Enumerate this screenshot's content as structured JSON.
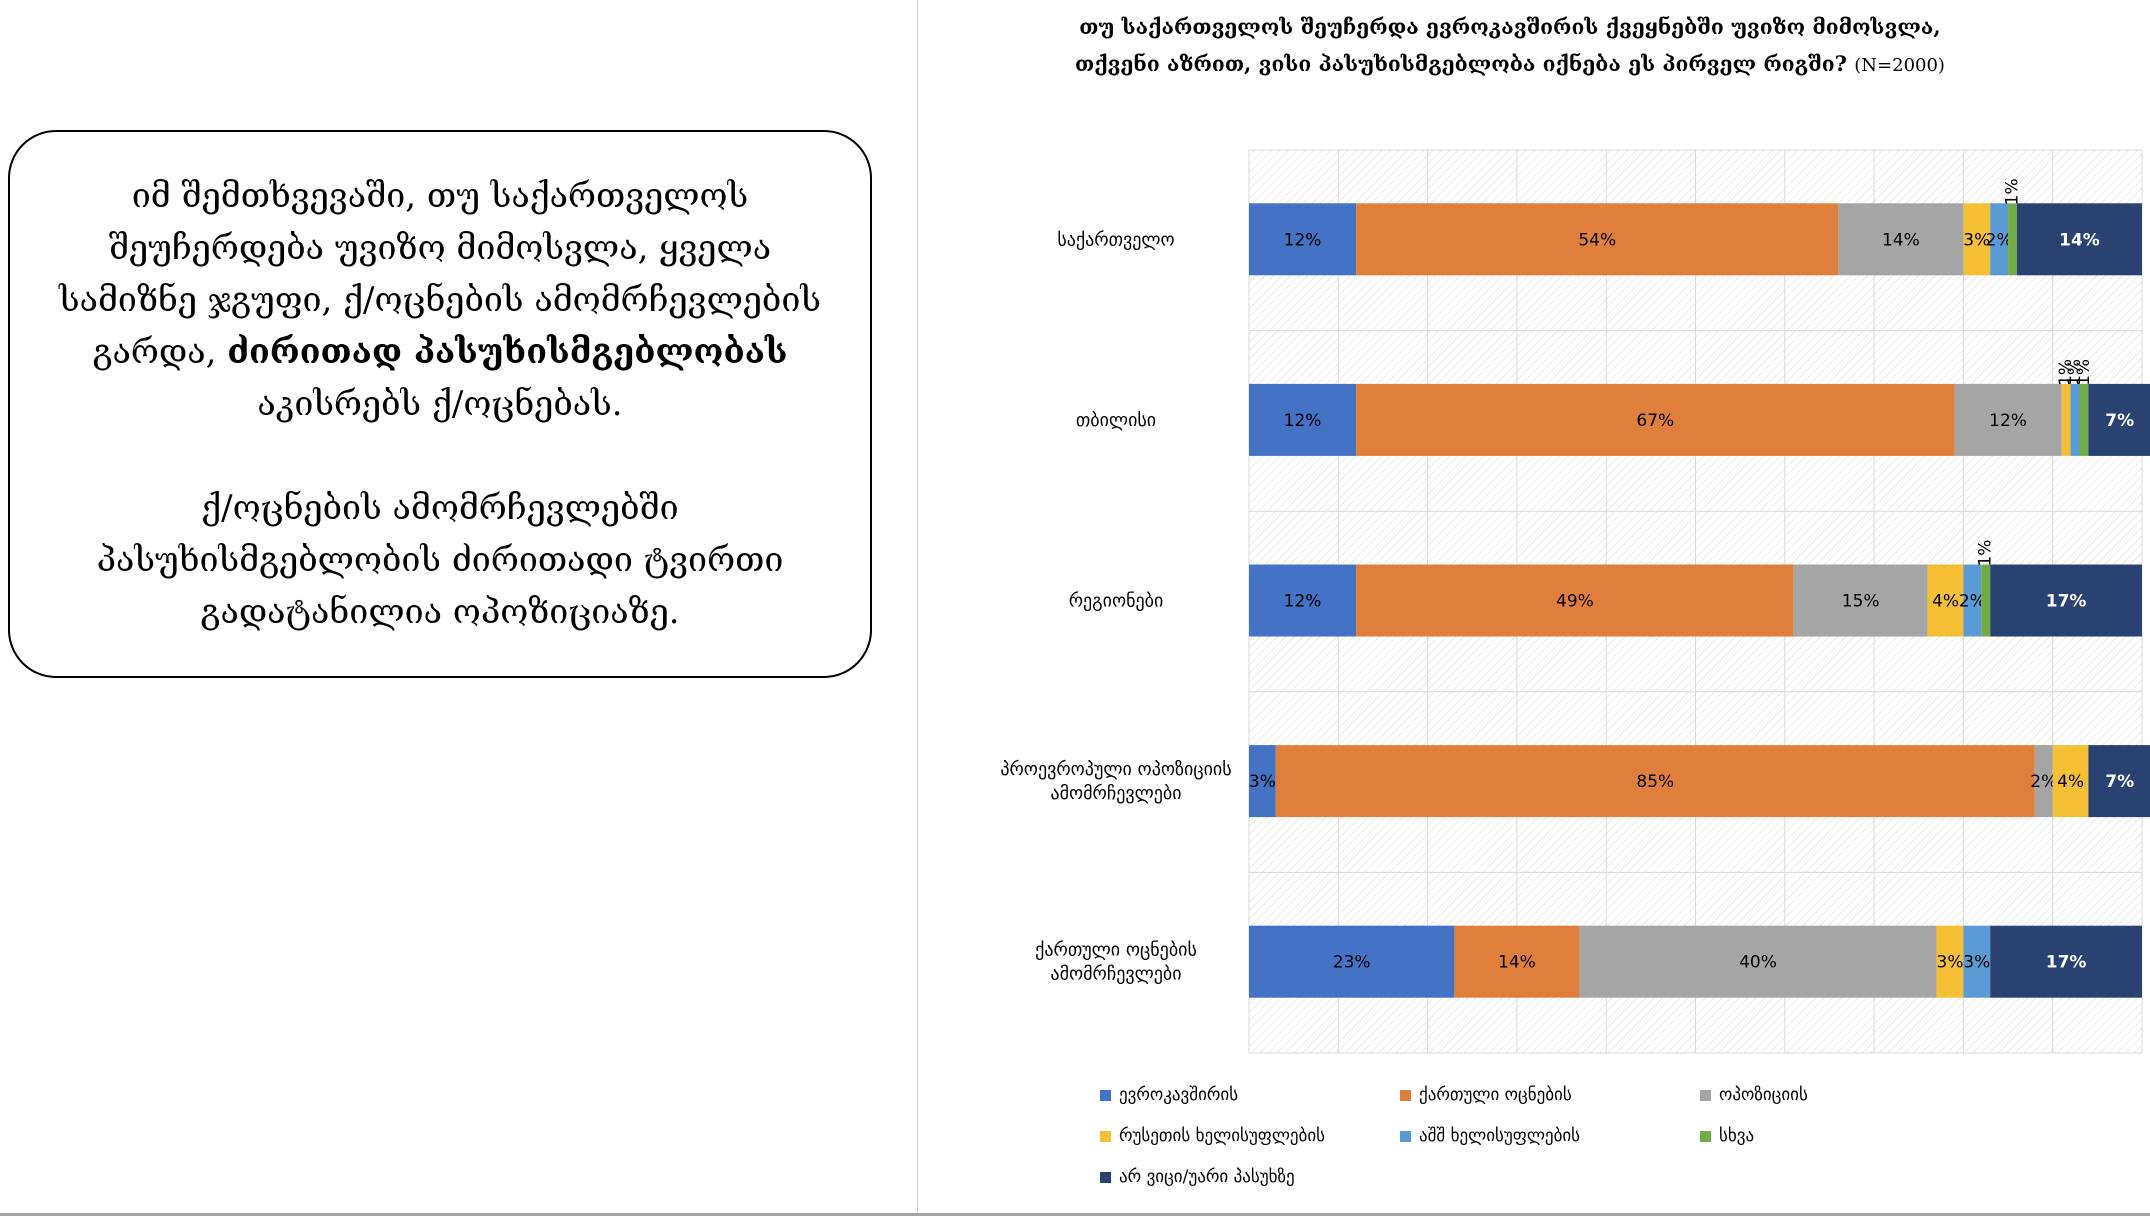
{
  "callout": {
    "p1_part1": "იმ შემთხვევაში, თუ საქართველოს შეუჩერდება უვიზო მიმოსვლა, ყველა სამიზნე ჯგუფი, ქ/ოცნების ამომრჩევლების გარდა,",
    "p1_bold": "ძირითად პასუხისმგებლობას",
    "p1_part2": "აკისრებს ქ/ოცნებას.",
    "p2": "ქ/ოცნების ამომრჩევლებში პასუხისმგებლობის ძირითადი ტვირთი გადატანილია ოპოზიციაზე."
  },
  "chart_data": {
    "type": "bar",
    "orientation": "horizontal",
    "stacked": "percent",
    "title": "თუ საქართველოს შეუჩერდა ევროკავშირის ქვეყნებში უვიზო მიმოსვლა, თქვენი აზრით, ვისი პასუხისმგებლობა იქნება ეს  პირველ რიგში?",
    "title_note": "(N=2000)",
    "categories": [
      "საქართველო",
      "თბილისი",
      "რეგიონები",
      "პროევროპული ოპოზიციის ამომრჩევლები",
      "ქართული ოცნების ამომრჩევლები"
    ],
    "series": [
      {
        "name": "ევროკავშირის",
        "color": "#4472c4",
        "values": [
          12,
          12,
          12,
          3,
          23
        ],
        "labels": [
          "12%",
          "12%",
          "12%",
          "3%",
          "23%"
        ]
      },
      {
        "name": "ქართული ოცნების",
        "color": "#e07f3b",
        "values": [
          54,
          67,
          49,
          85,
          14
        ],
        "labels": [
          "54%",
          "67%",
          "49%",
          "85%",
          "14%"
        ]
      },
      {
        "name": "ოპოზიციის",
        "color": "#a5a5a5",
        "values": [
          14,
          12,
          15,
          2,
          40
        ],
        "labels": [
          "14%",
          "12%",
          "15%",
          "2%",
          "40%"
        ]
      },
      {
        "name": "რუსეთის ხელისუფლების",
        "color": "#f5c036",
        "values": [
          3,
          1,
          4,
          4,
          3
        ],
        "labels": [
          "3%",
          "1%",
          "4%",
          "4%",
          "3%"
        ]
      },
      {
        "name": "აშშ ხელისუფლების",
        "color": "#5b9bd5",
        "values": [
          2,
          1,
          2,
          0,
          3
        ],
        "labels": [
          "2%",
          "1%",
          "2%",
          "",
          "3%"
        ]
      },
      {
        "name": "სხვა",
        "color": "#70ad47",
        "values": [
          1,
          1,
          1,
          0,
          0
        ],
        "labels": [
          "1%",
          "1%",
          "1%",
          "",
          ""
        ]
      },
      {
        "name": "არ ვიცი/უარი პასუხზე",
        "color": "#2a4272",
        "values": [
          14,
          7,
          17,
          7,
          17
        ],
        "labels": [
          "14%",
          "7%",
          "17%",
          "7%",
          "17%"
        ]
      }
    ],
    "xlim": [
      0,
      100
    ],
    "grid": true,
    "legend": "bottom"
  }
}
